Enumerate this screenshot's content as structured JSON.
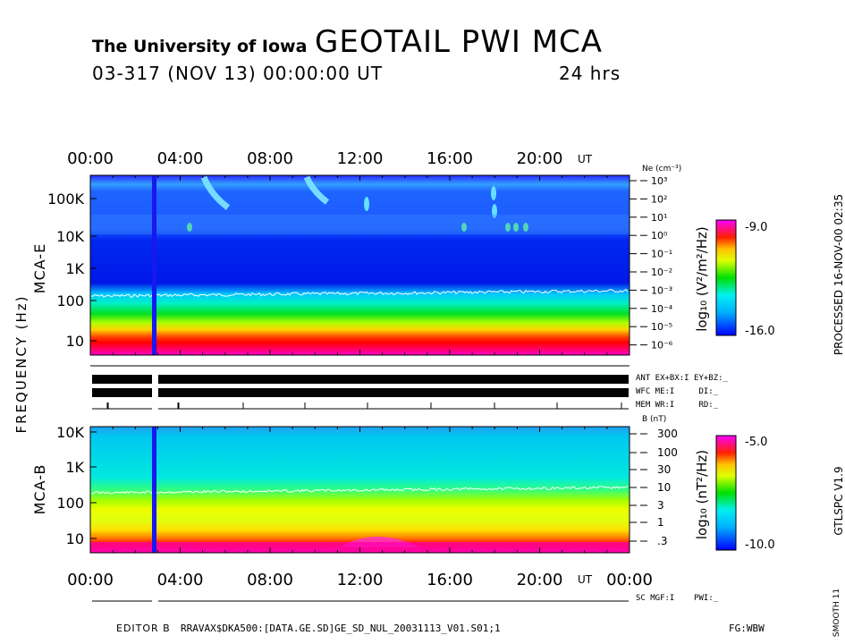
{
  "header": {
    "institution": "The University of Iowa",
    "title": "GEOTAIL PWI MCA",
    "date_line": "03-317 (NOV 13) 00:00:00 UT",
    "duration": "24 hrs"
  },
  "side_text": {
    "processed": "PROCESSED 16-NOV-00 02:35",
    "program": "GTLSPC V1.9",
    "smooth": "SMOOTH 11"
  },
  "footer": {
    "editor": "EDITOR B",
    "path": "RRAVAX$DKA500:[DATA.GE.SD]GE_SD_NUL_20031113_V01.S01;1",
    "initials": "FG:WBW"
  },
  "status_labels": {
    "ant": "ANT EX+BX:I EY+BZ:_",
    "wfc": "WFC ME:I     DI:_",
    "mem": "MEM WR:I     RD:_",
    "sc": "SC MGF:I    PWI:_"
  },
  "chart_data": {
    "type": "heatmap",
    "time_axis": {
      "tick_labels": [
        "00:00",
        "04:00",
        "08:00",
        "12:00",
        "16:00",
        "20:00"
      ],
      "bottom_tick_labels": [
        "00:00",
        "04:00",
        "08:00",
        "12:00",
        "16:00",
        "20:00",
        "00:00"
      ],
      "unit": "UT",
      "range_hours": [
        0,
        24
      ]
    },
    "shared_ylabel": "FREQUENCY (Hz)",
    "panels": [
      {
        "name": "MCA-E",
        "y_ticks": [
          "100K",
          "10K",
          "1K",
          "100",
          "10"
        ],
        "y_scale": "log",
        "right_axis_label": "Ne (cm⁻³)",
        "right_axis_ticks": [
          "10³",
          "10²",
          "10¹",
          "10⁰",
          "10⁻¹",
          "10⁻²",
          "10⁻³",
          "10⁻⁴",
          "10⁻⁵",
          "10⁻⁶"
        ],
        "colorbar_label": "log₁₀ (V²/m²/Hz)",
        "colorbar_range": [
          "-16.0",
          "-9.0"
        ],
        "data_gap_hour": 2.8
      },
      {
        "name": "MCA-B",
        "y_ticks": [
          "10K",
          "1K",
          "100",
          "10"
        ],
        "y_scale": "log",
        "right_axis_label": "B (nT)",
        "right_axis_ticks": [
          "300",
          "100",
          "30",
          "10",
          "3",
          "1",
          ".3"
        ],
        "colorbar_label": "log₁₀ (nT²/Hz)",
        "colorbar_range": [
          "-10.0",
          "-5.0"
        ],
        "data_gap_hour": 2.8
      }
    ],
    "colors": {
      "magenta": "#ff00ff",
      "red": "#ff0000",
      "yellow": "#ffff00",
      "green": "#00e000",
      "cyan": "#00e8f0",
      "blue": "#0000ff"
    }
  }
}
